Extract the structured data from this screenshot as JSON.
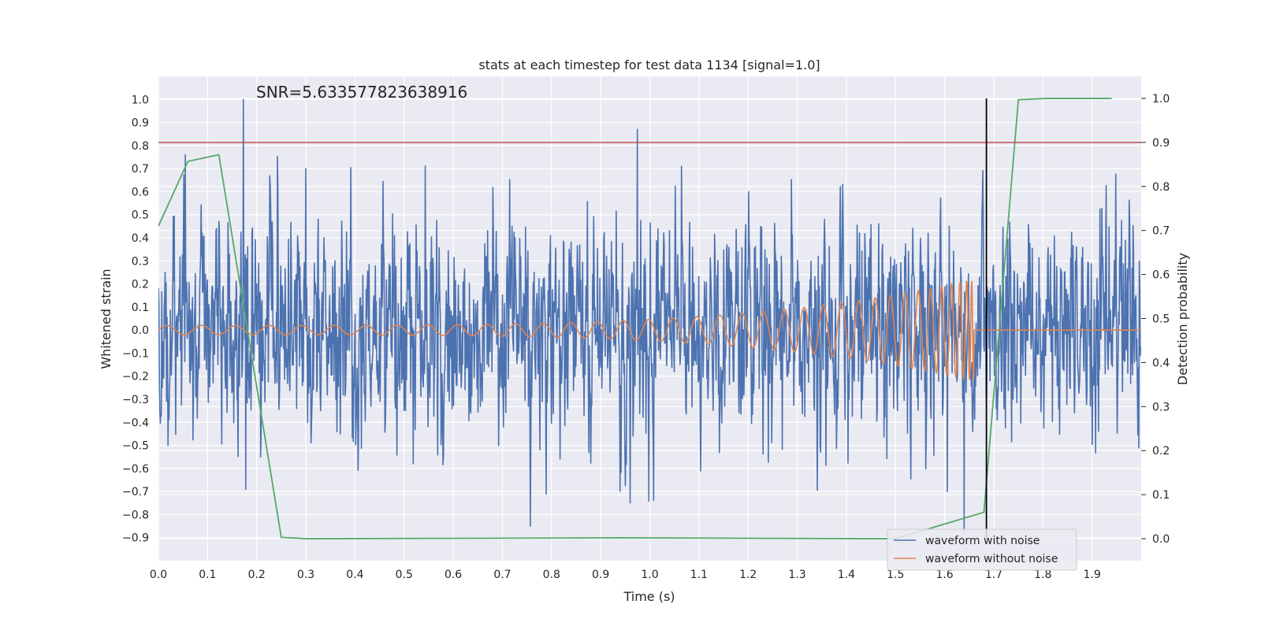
{
  "chart_data": {
    "type": "line",
    "title": "stats at each timestep for test data 1134 [signal=1.0]",
    "annotation": "SNR=5.633577823638916",
    "xlabel": "Time (s)",
    "ylabel": "Whitened strain",
    "ylabel_right": "Detection probability",
    "xlim": [
      0.0,
      2.0
    ],
    "ylim": [
      -1.0,
      1.1
    ],
    "ylim_right": [
      -0.05,
      1.05
    ],
    "xticks": [
      "0.0",
      "0.1",
      "0.2",
      "0.3",
      "0.4",
      "0.5",
      "0.6",
      "0.7",
      "0.8",
      "0.9",
      "1.0",
      "1.1",
      "1.2",
      "1.3",
      "1.4",
      "1.5",
      "1.6",
      "1.7",
      "1.8",
      "1.9"
    ],
    "yticks": [
      "1.0",
      "0.9",
      "0.8",
      "0.7",
      "0.6",
      "0.5",
      "0.4",
      "0.3",
      "0.2",
      "0.1",
      "0.0",
      "−0.1",
      "−0.2",
      "−0.3",
      "−0.4",
      "−0.5",
      "−0.6",
      "−0.7",
      "−0.8",
      "−0.9"
    ],
    "yticks_right": [
      "1.0",
      "0.9",
      "0.8",
      "0.7",
      "0.6",
      "0.5",
      "0.4",
      "0.3",
      "0.2",
      "0.1",
      "0.0"
    ],
    "grid": true,
    "legend_position": "lower-right",
    "series": [
      {
        "name": "waveform with noise",
        "color": "#4c72b0",
        "kind": "noise",
        "amplitude": 0.3,
        "peaks": [
          [
            0.173,
            1.0
          ],
          [
            0.178,
            -0.69
          ],
          [
            0.975,
            0.87
          ],
          [
            1.64,
            -0.88
          ],
          [
            0.055,
            0.76
          ],
          [
            0.3,
            0.7
          ],
          [
            1.605,
            -0.7
          ]
        ]
      },
      {
        "name": "waveform without noise",
        "color": "#dd8452",
        "kind": "chirp",
        "x_start": 0.0,
        "x_merger": 1.66,
        "amplitude_start": 0.02,
        "amplitude_end": 0.22
      }
    ],
    "detection_probability": {
      "color": "#55a868",
      "x": [
        0.0,
        0.06,
        0.123,
        0.25,
        0.303,
        0.93,
        1.5,
        1.68,
        1.75,
        1.81,
        1.94
      ],
      "y": [
        0.71,
        0.857,
        0.872,
        0.003,
        0.0,
        0.002,
        0.0,
        0.06,
        0.997,
        1.0,
        1.0
      ]
    },
    "threshold": {
      "y_right": 0.9,
      "color": "#c44e52"
    },
    "marker_x": 1.685,
    "marker_color": "#000000"
  }
}
